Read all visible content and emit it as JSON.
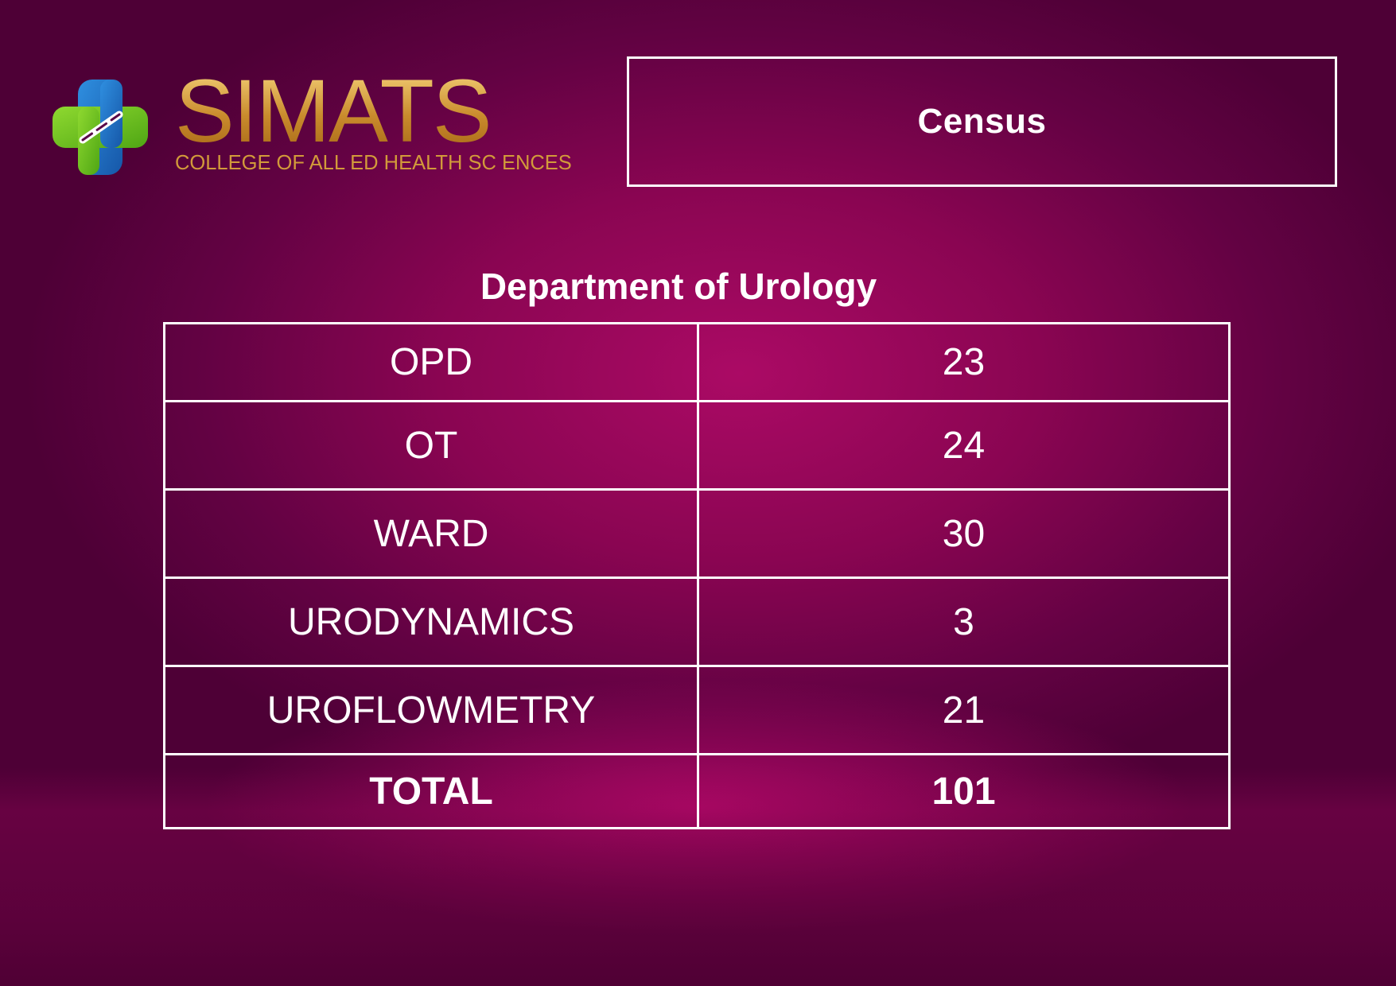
{
  "logo": {
    "wordmark": "SIMATS",
    "tagline": "COLLEGE OF ALL ED HEALTH SC ENCES"
  },
  "header": {
    "title": "Census"
  },
  "department": {
    "title": "Department of  Urology"
  },
  "census_table": {
    "rows": [
      {
        "label": "OPD",
        "value": "23"
      },
      {
        "label": "OT",
        "value": "24"
      },
      {
        "label": "WARD",
        "value": "30"
      },
      {
        "label": "URODYNAMICS",
        "value": "3"
      },
      {
        "label": "UROFLOWMETRY",
        "value": "21"
      }
    ],
    "total": {
      "label": "TOTAL",
      "value": "101"
    }
  },
  "colors": {
    "background_dark": "#5a003d",
    "background_glow": "#ab0a65",
    "logo_gold": "#d29a3a",
    "logo_green": "#6dc21e",
    "logo_blue": "#1f6fc4",
    "text": "#ffffff"
  }
}
